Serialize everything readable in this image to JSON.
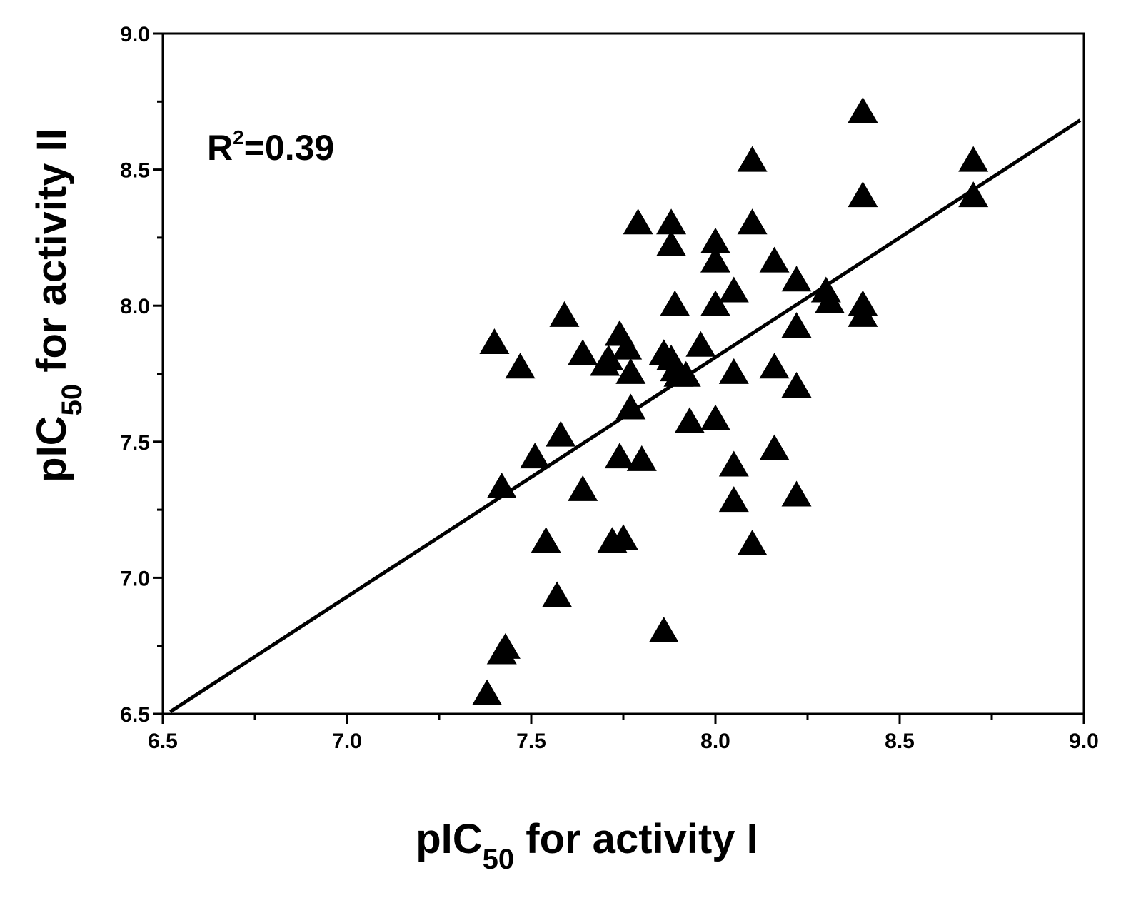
{
  "chart_data": {
    "type": "scatter",
    "title": "",
    "xlabel": {
      "prefix": "pIC",
      "subscript": "50",
      "suffix": " for activity I"
    },
    "ylabel": {
      "prefix": "pIC",
      "subscript": "50",
      "suffix": " for activity II"
    },
    "xlim": [
      6.5,
      9.0
    ],
    "ylim": [
      6.5,
      9.0
    ],
    "xticks": [
      "6.5",
      "7.0",
      "7.5",
      "8.0",
      "8.5",
      "9.0"
    ],
    "yticks": [
      "6.5",
      "7.0",
      "7.5",
      "8.0",
      "8.5",
      "9.0"
    ],
    "grid": false,
    "marker": "triangle",
    "annotation": {
      "base": "R",
      "sup": "2",
      "rest": "=0.39"
    },
    "fit_line": {
      "slope": 0.88,
      "intercept": 0.77
    },
    "points": [
      [
        7.38,
        6.57
      ],
      [
        7.42,
        6.72
      ],
      [
        7.43,
        6.74
      ],
      [
        7.4,
        7.86
      ],
      [
        7.47,
        7.77
      ],
      [
        7.42,
        7.33
      ],
      [
        7.51,
        7.44
      ],
      [
        7.54,
        7.13
      ],
      [
        7.57,
        6.93
      ],
      [
        7.58,
        7.52
      ],
      [
        7.59,
        7.96
      ],
      [
        7.64,
        7.82
      ],
      [
        7.64,
        7.32
      ],
      [
        7.7,
        7.78
      ],
      [
        7.71,
        7.8
      ],
      [
        7.72,
        7.13
      ],
      [
        7.74,
        7.44
      ],
      [
        7.74,
        7.89
      ],
      [
        7.75,
        7.14
      ],
      [
        7.76,
        7.84
      ],
      [
        7.77,
        7.62
      ],
      [
        7.77,
        7.75
      ],
      [
        7.79,
        8.3
      ],
      [
        7.8,
        7.43
      ],
      [
        7.86,
        6.8
      ],
      [
        7.86,
        7.82
      ],
      [
        7.88,
        7.8
      ],
      [
        7.88,
        8.3
      ],
      [
        7.88,
        8.22
      ],
      [
        7.89,
        8.0
      ],
      [
        7.89,
        7.76
      ],
      [
        7.9,
        7.74
      ],
      [
        7.92,
        7.74
      ],
      [
        7.93,
        7.57
      ],
      [
        7.96,
        7.85
      ],
      [
        8.0,
        8.23
      ],
      [
        8.0,
        8.16
      ],
      [
        8.0,
        8.0
      ],
      [
        8.0,
        7.58
      ],
      [
        8.05,
        8.05
      ],
      [
        8.05,
        7.75
      ],
      [
        8.05,
        7.41
      ],
      [
        8.05,
        7.28
      ],
      [
        8.1,
        8.53
      ],
      [
        8.1,
        8.3
      ],
      [
        8.1,
        7.12
      ],
      [
        8.16,
        8.16
      ],
      [
        8.16,
        7.77
      ],
      [
        8.16,
        7.47
      ],
      [
        8.22,
        8.09
      ],
      [
        8.22,
        7.92
      ],
      [
        8.22,
        7.7
      ],
      [
        8.22,
        7.3
      ],
      [
        8.3,
        8.05
      ],
      [
        8.31,
        8.01
      ],
      [
        8.4,
        8.71
      ],
      [
        8.4,
        8.4
      ],
      [
        8.4,
        8.0
      ],
      [
        8.4,
        7.96
      ],
      [
        8.7,
        8.53
      ],
      [
        8.7,
        8.4
      ]
    ]
  }
}
